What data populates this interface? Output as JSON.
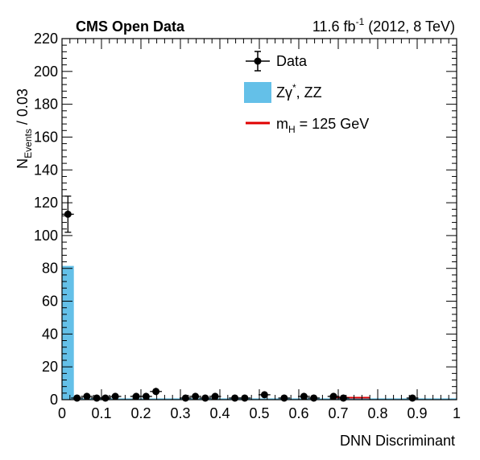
{
  "header": {
    "experiment": "CMS Open Data",
    "lumi_value": "11.6 fb",
    "lumi_exp": "-1",
    "lumi_rest": " (2012, 8 TeV)"
  },
  "colors": {
    "background_fill": "#64c0e8",
    "signal_line": "#e00000",
    "data_marker": "#000000"
  },
  "chart_data": {
    "type": "bar",
    "xlabel": "DNN Discriminant",
    "ylabel_main": "N",
    "ylabel_sub": "Events",
    "ylabel_suffix": " / 0.03",
    "xlim": [
      0,
      1
    ],
    "ylim": [
      0,
      220
    ],
    "x_ticks": [
      "0",
      "0.1",
      "0.2",
      "0.3",
      "0.4",
      "0.5",
      "0.6",
      "0.7",
      "0.8",
      "0.9",
      "1"
    ],
    "y_ticks": [
      "0",
      "20",
      "40",
      "60",
      "80",
      "100",
      "120",
      "140",
      "160",
      "180",
      "200",
      "220"
    ],
    "legend": {
      "placement": "top-right",
      "entries": [
        {
          "label": "Data",
          "kind": "data"
        },
        {
          "label_parts": [
            "Z",
            "γ",
            "*",
            ", ZZ"
          ],
          "label": "Zγ*, ZZ",
          "kind": "fill"
        },
        {
          "label_main": "m",
          "label_sub": "H",
          "label_rest": " = 125 GeV",
          "label": "mH = 125 GeV",
          "kind": "line"
        }
      ]
    },
    "bin_width": 0.03,
    "background": {
      "name": "Zγ*, ZZ",
      "bins": [
        {
          "x0": 0.0,
          "x1": 0.03,
          "y": 81.5
        },
        {
          "x0": 0.03,
          "x1": 1.0,
          "y": 0.8
        }
      ]
    },
    "signal": {
      "name": "mH = 125 GeV",
      "bins": [
        {
          "x0": 0.0,
          "x1": 0.03,
          "y": 0.0
        },
        {
          "x0": 0.69,
          "x1": 0.78,
          "y": 1.2
        }
      ]
    },
    "data": [
      {
        "x": 0.015,
        "y": 113,
        "err": 11
      },
      {
        "x": 0.038,
        "y": 1,
        "err": 1
      },
      {
        "x": 0.063,
        "y": 2,
        "err": 1.4
      },
      {
        "x": 0.088,
        "y": 1,
        "err": 1
      },
      {
        "x": 0.11,
        "y": 1,
        "err": 1
      },
      {
        "x": 0.135,
        "y": 2,
        "err": 1.4
      },
      {
        "x": 0.188,
        "y": 2,
        "err": 1.4
      },
      {
        "x": 0.213,
        "y": 2,
        "err": 1.4
      },
      {
        "x": 0.238,
        "y": 5,
        "err": 2.2
      },
      {
        "x": 0.313,
        "y": 1,
        "err": 1
      },
      {
        "x": 0.338,
        "y": 2,
        "err": 1.4
      },
      {
        "x": 0.363,
        "y": 1,
        "err": 1
      },
      {
        "x": 0.388,
        "y": 2,
        "err": 1.4
      },
      {
        "x": 0.438,
        "y": 1,
        "err": 1
      },
      {
        "x": 0.463,
        "y": 1,
        "err": 1
      },
      {
        "x": 0.513,
        "y": 3,
        "err": 1.7
      },
      {
        "x": 0.563,
        "y": 1,
        "err": 1
      },
      {
        "x": 0.613,
        "y": 2,
        "err": 1.4
      },
      {
        "x": 0.638,
        "y": 1,
        "err": 1
      },
      {
        "x": 0.688,
        "y": 2,
        "err": 1.4
      },
      {
        "x": 0.713,
        "y": 1,
        "err": 1
      },
      {
        "x": 0.888,
        "y": 1,
        "err": 1
      }
    ]
  }
}
